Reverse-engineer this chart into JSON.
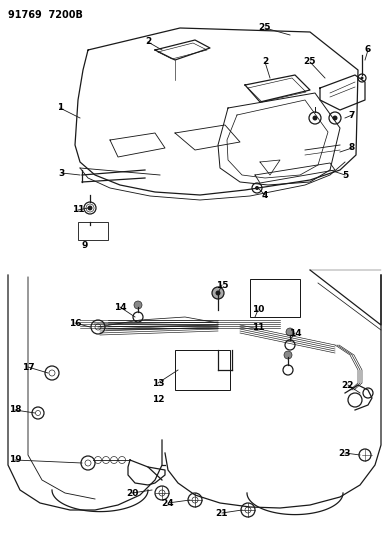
{
  "title": "91769 7200B",
  "bg": "#ffffff",
  "lc": "#1a1a1a",
  "figsize": [
    3.89,
    5.33
  ],
  "dpi": 100
}
